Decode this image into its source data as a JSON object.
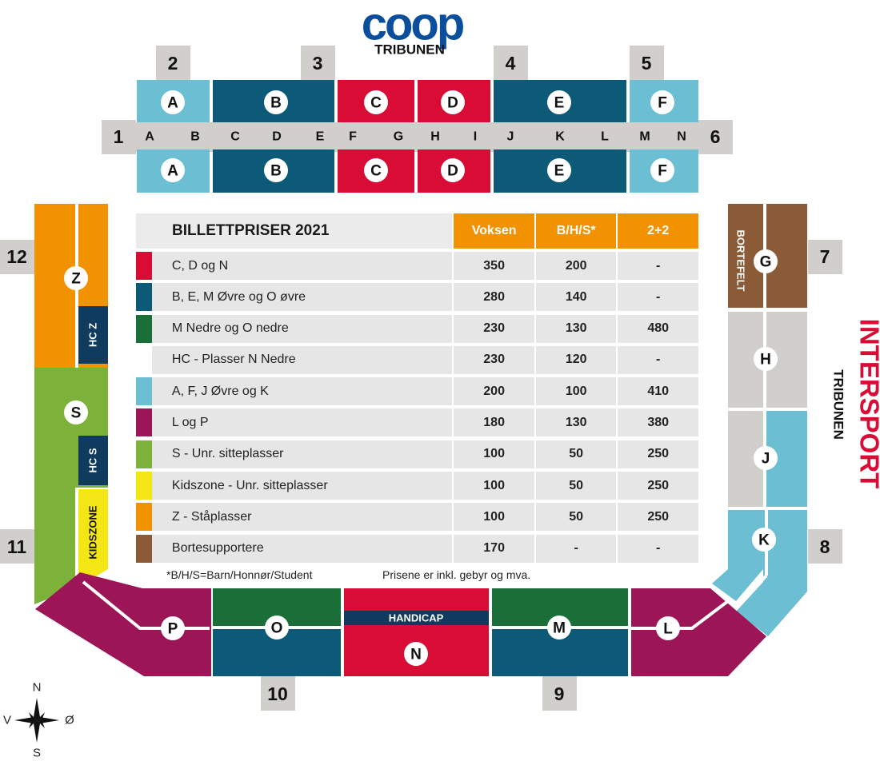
{
  "header": {
    "logo": "coop",
    "stand_label": "TRIBUNEN"
  },
  "right_brand": {
    "logo": "INTERSPORT",
    "stand_label": "TRIBUNEN"
  },
  "gates": [
    "1",
    "2",
    "3",
    "4",
    "5",
    "6",
    "7",
    "8",
    "9",
    "10",
    "11",
    "12"
  ],
  "top_sections": [
    "A",
    "B",
    "C",
    "D",
    "E",
    "F"
  ],
  "top_rows": [
    "A",
    "B",
    "C",
    "D",
    "E",
    "F",
    "G",
    "H",
    "I",
    "J",
    "K",
    "L",
    "M",
    "N"
  ],
  "east_sections": [
    "G",
    "H",
    "J",
    "K"
  ],
  "bottom_sections": [
    "P",
    "O",
    "N",
    "M",
    "L"
  ],
  "west_sections": [
    "Z",
    "S"
  ],
  "labels": {
    "bortefelt": "BORTEFELT",
    "handicap": "HANDICAP",
    "hc_z": "HC Z",
    "hc_s": "HC S",
    "kidszone": "KIDSZONE"
  },
  "colors": {
    "light_blue": "#6cbfd2",
    "dark_blue": "#0d5a78",
    "red": "#d90c35",
    "green": "#1a6e37",
    "maroon": "#9c1556",
    "lime": "#7db23a",
    "yellow": "#f4e614",
    "orange": "#f39200",
    "brown": "#8b5a36",
    "grey": "#d1cfcc"
  },
  "price_table": {
    "title": "BILLETTPRISER 2021",
    "columns": [
      "Voksen",
      "B/H/S*",
      "2+2"
    ],
    "rows": [
      {
        "color": "#d90c35",
        "label": "C, D og N",
        "voksen": "350",
        "bhs": "200",
        "two_two": "-"
      },
      {
        "color": "#0d5a78",
        "label": "B, E, M Øvre og O øvre",
        "voksen": "280",
        "bhs": "140",
        "two_two": "-"
      },
      {
        "color": "#1a6e37",
        "label": "M Nedre og O nedre",
        "voksen": "230",
        "bhs": "130",
        "two_two": "480"
      },
      {
        "color": "#ffffff",
        "label": "HC - Plasser N Nedre",
        "voksen": "230",
        "bhs": "120",
        "two_two": "-"
      },
      {
        "color": "#6cbfd2",
        "label": "A, F, J Øvre og K",
        "voksen": "200",
        "bhs": "100",
        "two_two": "410"
      },
      {
        "color": "#9c1556",
        "label": "L og P",
        "voksen": "180",
        "bhs": "130",
        "two_two": "380"
      },
      {
        "color": "#7db23a",
        "label": "S - Unr. sitteplasser",
        "voksen": "100",
        "bhs": "50",
        "two_two": "250"
      },
      {
        "color": "#f4e614",
        "label": "Kidszone - Unr. sitteplasser",
        "voksen": "100",
        "bhs": "50",
        "two_two": "250"
      },
      {
        "color": "#f39200",
        "label": "Z - Ståplasser",
        "voksen": "100",
        "bhs": "50",
        "two_two": "250"
      },
      {
        "color": "#8b5a36",
        "label": "Bortesupportere",
        "voksen": "170",
        "bhs": "-",
        "two_two": "-"
      }
    ]
  },
  "footnotes": {
    "bhs": "*B/H/S=Barn/Honnør/Student",
    "fees": "Prisene er inkl. gebyr og mva."
  },
  "compass": {
    "n": "N",
    "s": "S",
    "e": "Ø",
    "w": "V"
  }
}
